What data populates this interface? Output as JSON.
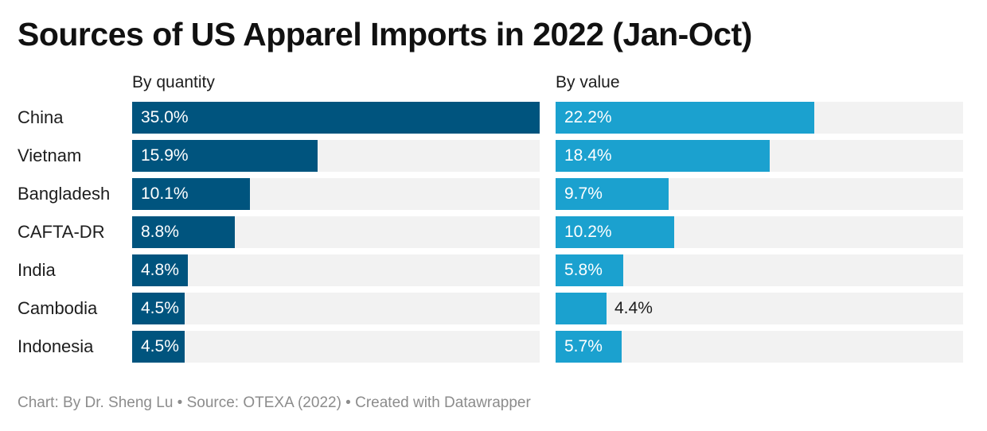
{
  "title": "Sources of US Apparel Imports in 2022 (Jan-Oct)",
  "footer": "Chart: By Dr. Sheng Lu • Source: OTEXA (2022) • Created with Datawrapper",
  "colors": {
    "quantity_bar": "#00547e",
    "value_bar": "#1ba1cf",
    "track": "#f2f2f2",
    "label_inside": "#ffffff",
    "label_outside": "#1d1d1d"
  },
  "chart_data": {
    "type": "bar",
    "orientation": "horizontal",
    "title": "Sources of US Apparel Imports in 2022 (Jan-Oct)",
    "unit": "%",
    "categories": [
      "China",
      "Vietnam",
      "Bangladesh",
      "CAFTA-DR",
      "India",
      "Cambodia",
      "Indonesia"
    ],
    "xlim": [
      0,
      35
    ],
    "series": [
      {
        "name": "By quantity",
        "values": [
          35.0,
          15.9,
          10.1,
          8.8,
          4.8,
          4.5,
          4.5
        ],
        "labels": [
          "35.0%",
          "15.9%",
          "10.1%",
          "8.8%",
          "4.8%",
          "4.5%",
          "4.5%"
        ]
      },
      {
        "name": "By value",
        "values": [
          22.2,
          18.4,
          9.7,
          10.2,
          5.8,
          4.4,
          5.7
        ],
        "labels": [
          "22.2%",
          "18.4%",
          "9.7%",
          "10.2%",
          "5.8%",
          "4.4%",
          "5.7%"
        ]
      }
    ]
  }
}
